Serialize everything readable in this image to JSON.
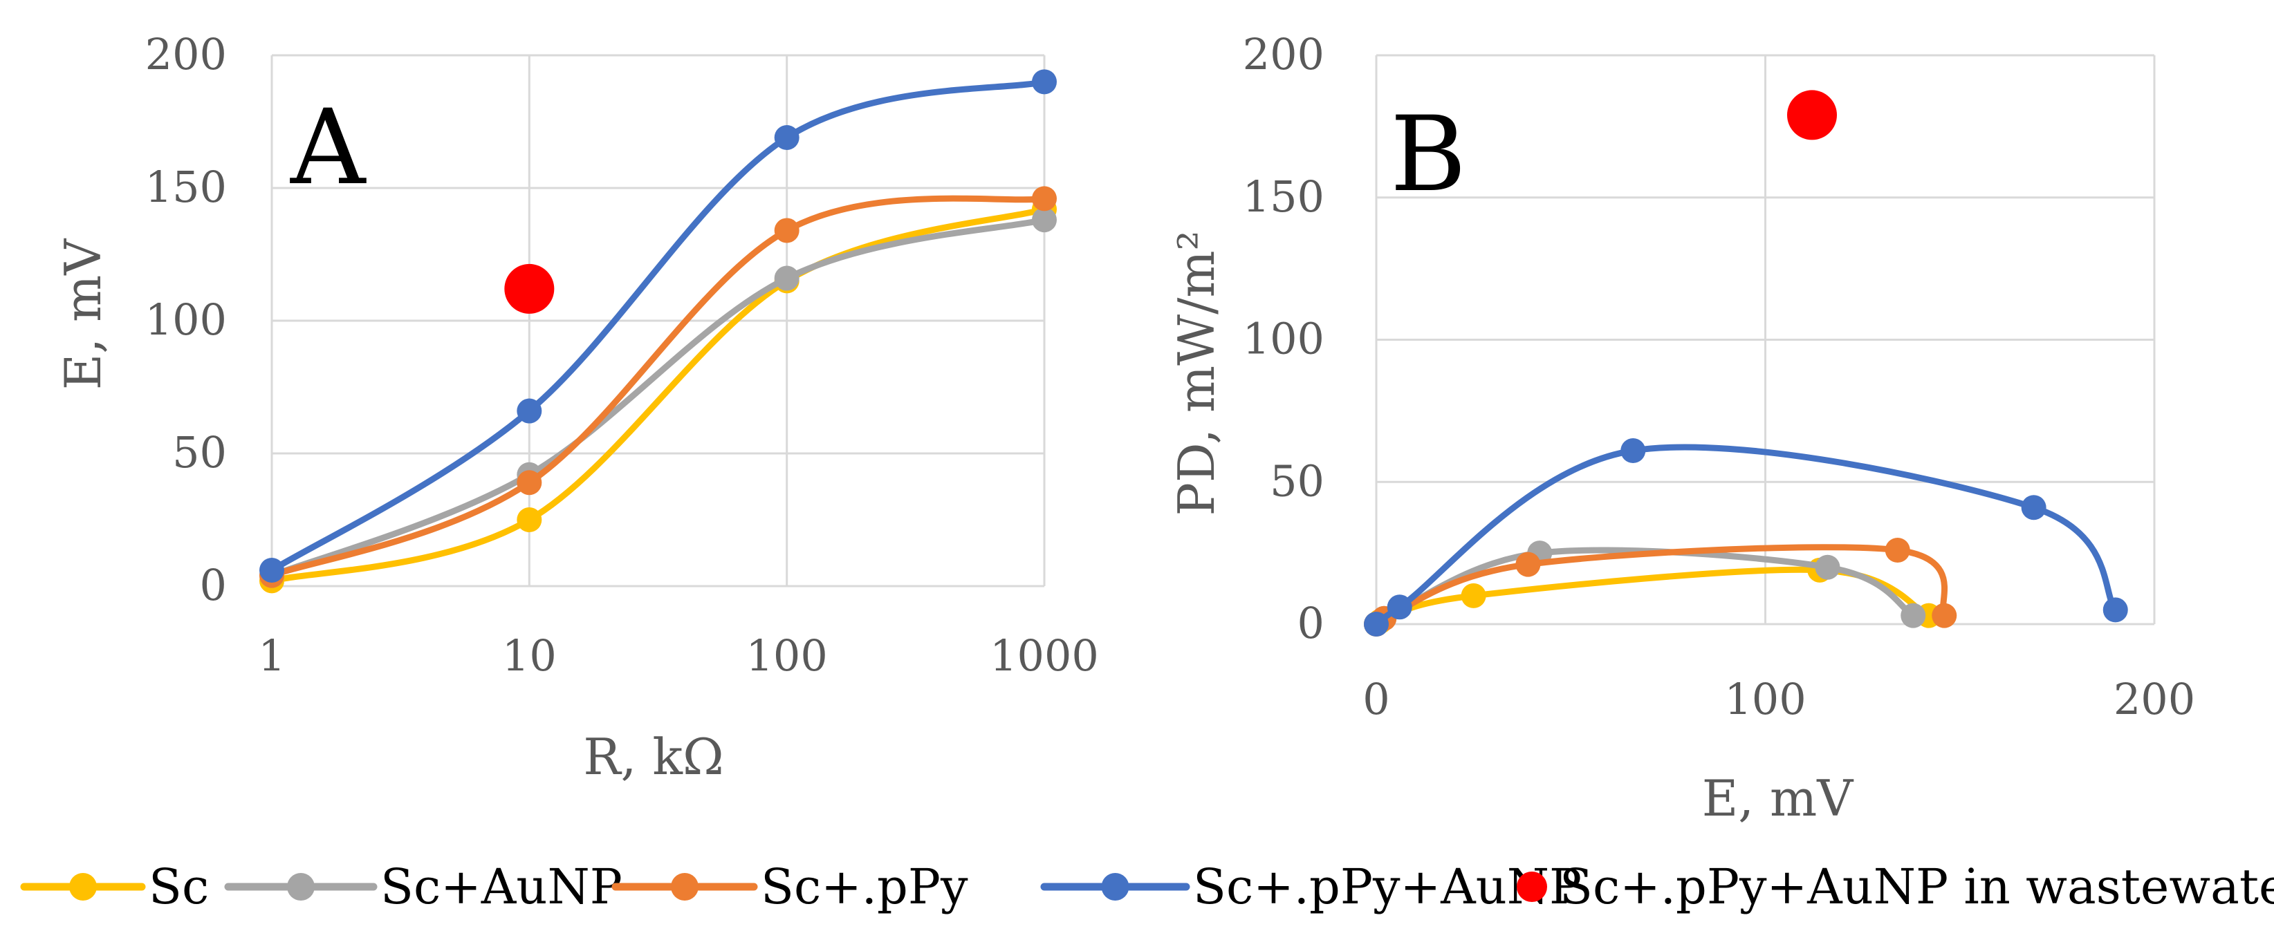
{
  "chart_data": [
    {
      "type": "line",
      "panel": "A",
      "xlabel": "R, kΩ",
      "ylabel": "E, mV",
      "xscale": "log",
      "x": [
        1,
        10,
        100,
        1000
      ],
      "xticks": [
        "1",
        "10",
        "100",
        "1000"
      ],
      "ylim": [
        0,
        200
      ],
      "yticks": [
        "0",
        "50",
        "100",
        "150",
        "200"
      ],
      "grid": true,
      "series": [
        {
          "name": "Sc",
          "color": "#FFC000",
          "values": [
            2,
            25,
            115,
            142
          ]
        },
        {
          "name": "Sc+AuNP",
          "color": "#A5A5A5",
          "values": [
            4,
            42,
            116,
            138
          ]
        },
        {
          "name": "Sc+.pPy",
          "color": "#ED7D31",
          "values": [
            4,
            39,
            134,
            146
          ]
        },
        {
          "name": "Sc+.pPy+AuNP",
          "color": "#4472C4",
          "values": [
            6,
            66,
            169,
            190
          ]
        }
      ],
      "points": [
        {
          "name": "Sc+.pPy+AuNP in wastewater",
          "color": "#FF0000",
          "x": 10,
          "y": 112
        }
      ]
    },
    {
      "type": "line",
      "panel": "B",
      "xlabel": "E, mV",
      "ylabel": "PD, mW/m²",
      "xlim": [
        0,
        200
      ],
      "xticks": [
        "0",
        "100",
        "200"
      ],
      "ylim": [
        0,
        200
      ],
      "yticks": [
        "0",
        "50",
        "100",
        "150",
        "200"
      ],
      "grid": true,
      "series": [
        {
          "name": "Sc",
          "color": "#FFC000",
          "points": [
            [
              0,
              0
            ],
            [
              1,
              1
            ],
            [
              25,
              10
            ],
            [
              114,
              19
            ],
            [
              142,
              3
            ]
          ]
        },
        {
          "name": "Sc+AuNP",
          "color": "#A5A5A5",
          "points": [
            [
              0,
              0
            ],
            [
              2,
              2
            ],
            [
              42,
              25
            ],
            [
              116,
              20
            ],
            [
              138,
              3
            ]
          ]
        },
        {
          "name": "Sc+.pPy",
          "color": "#ED7D31",
          "points": [
            [
              0,
              0
            ],
            [
              2,
              2
            ],
            [
              39,
              21
            ],
            [
              134,
              26
            ],
            [
              146,
              3
            ]
          ]
        },
        {
          "name": "Sc+.pPy+AuNP",
          "color": "#4472C4",
          "points": [
            [
              0,
              0
            ],
            [
              6,
              6
            ],
            [
              66,
              61
            ],
            [
              169,
              41
            ],
            [
              190,
              5
            ]
          ]
        }
      ],
      "points": [
        {
          "name": "Sc+.pPy+AuNP in wastewater",
          "color": "#FF0000",
          "x": 112,
          "y": 179
        }
      ]
    }
  ],
  "legend": [
    {
      "label": "Sc",
      "color": "#FFC000",
      "kind": "line"
    },
    {
      "label": "Sc+AuNP",
      "color": "#A5A5A5",
      "kind": "line"
    },
    {
      "label": "Sc+.pPy",
      "color": "#ED7D31",
      "kind": "line"
    },
    {
      "label": "Sc+.pPy+AuNP",
      "color": "#4472C4",
      "kind": "line"
    },
    {
      "label": "Sc+.pPy+AuNP in wastewater",
      "color": "#FF0000",
      "kind": "dot"
    }
  ]
}
